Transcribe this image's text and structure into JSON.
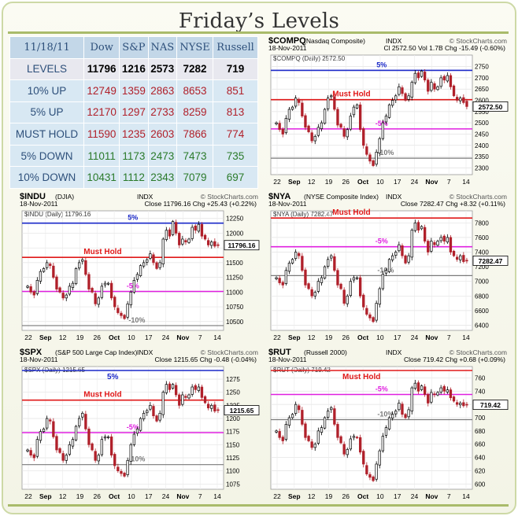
{
  "title": "Friday’s Levels",
  "colors": {
    "up": "#b0202a",
    "down": "#2a7a2a",
    "resist": "#e01818",
    "pct": "#e020e0",
    "top": "#1a28c8",
    "low": "#7a7a7a"
  },
  "levels_table": {
    "date": "11/18/11",
    "columns": [
      "Dow",
      "S&P",
      "NAS",
      "NYSE",
      "Russell"
    ],
    "rows": [
      {
        "label": "LEVELS",
        "values": [
          "11796",
          "1216",
          "2573",
          "7282",
          "719"
        ]
      },
      {
        "label": "10% UP",
        "values": [
          "12749",
          "1359",
          "2863",
          "8653",
          "851"
        ]
      },
      {
        "label": "5% UP",
        "values": [
          "12170",
          "1297",
          "2733",
          "8259",
          "813"
        ]
      },
      {
        "label": "MUST HOLD",
        "values": [
          "11590",
          "1235",
          "2603",
          "7866",
          "774"
        ]
      },
      {
        "label": "5% DOWN",
        "values": [
          "11011",
          "1173",
          "2473",
          "7473",
          "735"
        ]
      },
      {
        "label": "10% DOWN",
        "values": [
          "10431",
          "1112",
          "2343",
          "7079",
          "697"
        ]
      }
    ]
  },
  "chart_data": [
    {
      "type": "candlestick",
      "symbol": "$COMPQ",
      "name": "(Nasdaq Composite)",
      "exchange": "INDX",
      "source": "© StockCharts.com",
      "date": "18-Nov-2011",
      "stats": "Cl 2572.50  Vol 1.7B  Chg -15.49 (-0.60%)",
      "legend": "$COMPQ (Daily) 2572.50",
      "ylim": [
        2270,
        2780
      ],
      "yticks": [
        "2750",
        "2700",
        "2650",
        "2600",
        "2550",
        "2500",
        "2450",
        "2400",
        "2350",
        "2300"
      ],
      "ytick_values": [
        2750,
        2700,
        2650,
        2600,
        2550,
        2500,
        2450,
        2400,
        2350,
        2300
      ],
      "xticks": [
        "22",
        "Sep",
        "12",
        "19",
        "26",
        "Oct",
        "10",
        "17",
        "24",
        "Nov",
        "7",
        "14"
      ],
      "last_label": "2572.50",
      "last": 2572.5,
      "lines": [
        {
          "name": "5%",
          "value": 2733,
          "role": "top"
        },
        {
          "name": "Must Hold",
          "value": 2603,
          "role": "resist"
        },
        {
          "name": "-5%",
          "value": 2473,
          "role": "pct"
        },
        {
          "name": "-10%",
          "value": 2343,
          "role": "low"
        }
      ],
      "series": [
        2500,
        2470,
        2450,
        2520,
        2560,
        2570,
        2610,
        2590,
        2530,
        2480,
        2460,
        2420,
        2440,
        2480,
        2500,
        2560,
        2610,
        2620,
        2560,
        2490,
        2480,
        2440,
        2470,
        2530,
        2570,
        2580,
        2470,
        2400,
        2360,
        2330,
        2310,
        2370,
        2430,
        2500,
        2530,
        2580,
        2600,
        2620,
        2660,
        2630,
        2600,
        2620,
        2680,
        2720,
        2700,
        2730,
        2690,
        2640,
        2680,
        2650,
        2660,
        2700,
        2690,
        2710,
        2660,
        2620,
        2600,
        2610,
        2590,
        2572.5
      ]
    },
    {
      "type": "candlestick",
      "symbol": "$INDU",
      "name": "(DJIA)",
      "exchange": "INDX",
      "source": "© StockCharts.com",
      "date": "18-Nov-2011",
      "stats": "Close 11796.16  Chg +25.43 (+0.22%)",
      "legend": "$INDU (Daily) 11796.16",
      "ylim": [
        10350,
        12300
      ],
      "yticks": [
        "12250",
        "12000",
        "11750",
        "11500",
        "11250",
        "11000",
        "10750",
        "10500"
      ],
      "ytick_values": [
        12250,
        12000,
        11750,
        11500,
        11250,
        11000,
        10750,
        10500
      ],
      "xticks": [
        "22",
        "Sep",
        "12",
        "19",
        "26",
        "Oct",
        "10",
        "17",
        "24",
        "Nov",
        "7",
        "14"
      ],
      "last_label": "11796.16",
      "last": 11796.16,
      "lines": [
        {
          "name": "5%",
          "value": 12170,
          "role": "top"
        },
        {
          "name": "Must Hold",
          "value": 11590,
          "role": "resist"
        },
        {
          "name": "-5%",
          "value": 11011,
          "role": "pct"
        },
        {
          "name": "-10%",
          "value": 10431,
          "role": "low"
        }
      ],
      "series": [
        11100,
        11000,
        10950,
        11200,
        11350,
        11400,
        11500,
        11450,
        11250,
        11050,
        11000,
        10900,
        10950,
        11100,
        11150,
        11400,
        11500,
        11550,
        11300,
        11050,
        11000,
        10800,
        10900,
        11100,
        11150,
        11150,
        10900,
        10750,
        10650,
        10600,
        10550,
        10800,
        11000,
        11200,
        11300,
        11450,
        11500,
        11550,
        11650,
        11500,
        11400,
        11500,
        11900,
        12050,
        11950,
        12200,
        12000,
        11800,
        11900,
        11850,
        11900,
        12100,
        12050,
        12150,
        11950,
        11900,
        11800,
        11850,
        11780,
        11796.16
      ]
    },
    {
      "type": "candlestick",
      "symbol": "$NYA",
      "name": "(NYSE Composite Index)",
      "exchange": "INDX",
      "source": "© StockCharts.com",
      "date": "18-Nov-2011",
      "stats": "Close 7282.47  Chg +8.32 (+0.11%)",
      "legend": "$NYA (Daily) 7282.47",
      "ylim": [
        6330,
        7900
      ],
      "yticks": [
        "7800",
        "7600",
        "7400",
        "7200",
        "7000",
        "6800",
        "6600",
        "6400"
      ],
      "ytick_values": [
        7800,
        7600,
        7400,
        7200,
        7000,
        6800,
        6600,
        6400
      ],
      "xticks": [
        "22",
        "Sep",
        "12",
        "19",
        "26",
        "Oct",
        "10",
        "17",
        "24",
        "Nov",
        "7",
        "14"
      ],
      "last_label": "7282.47",
      "last": 7282.47,
      "lines": [
        {
          "name": "Must Hold",
          "value": 7866,
          "role": "resist"
        },
        {
          "name": "-5%",
          "value": 7473,
          "role": "pct"
        },
        {
          "name": "-10%",
          "value": 7079,
          "role": "low"
        }
      ],
      "series": [
        7050,
        6980,
        6950,
        7150,
        7250,
        7300,
        7400,
        7350,
        7150,
        6950,
        6900,
        6800,
        6850,
        7000,
        7050,
        7200,
        7300,
        7350,
        7150,
        6950,
        6900,
        6700,
        6800,
        7000,
        7050,
        7050,
        6800,
        6650,
        6550,
        6500,
        6450,
        6700,
        6900,
        7100,
        7150,
        7300,
        7350,
        7400,
        7500,
        7350,
        7250,
        7350,
        7700,
        7800,
        7700,
        7750,
        7550,
        7400,
        7550,
        7500,
        7550,
        7600,
        7550,
        7600,
        7400,
        7350,
        7300,
        7350,
        7270,
        7282.47
      ]
    },
    {
      "type": "candlestick",
      "symbol": "$SPX",
      "name": "(S&P 500 Large Cap Index)",
      "exchange": "INDX",
      "source": "© StockCharts.com",
      "date": "18-Nov-2011",
      "stats": "Close 1215.65  Chg -0.48 (-0.04%)",
      "legend": "$SPX (Daily) 1215.65",
      "ylim": [
        1065,
        1290
      ],
      "yticks": [
        "1275",
        "1250",
        "1225",
        "1200",
        "1175",
        "1150",
        "1125",
        "1100",
        "1075"
      ],
      "ytick_values": [
        1275,
        1250,
        1225,
        1200,
        1175,
        1150,
        1125,
        1100,
        1075
      ],
      "xticks": [
        "22",
        "Sep",
        "12",
        "19",
        "26",
        "Oct",
        "10",
        "17",
        "24",
        "Nov",
        "7",
        "14"
      ],
      "last_label": "1215.65",
      "last": 1215.65,
      "lines": [
        {
          "name": "5%",
          "value": 1297,
          "role": "top"
        },
        {
          "name": "Must Hold",
          "value": 1235,
          "role": "resist"
        },
        {
          "name": "-5%",
          "value": 1173,
          "role": "pct"
        },
        {
          "name": "-10%",
          "value": 1112,
          "role": "low"
        }
      ],
      "series": [
        1140,
        1130,
        1125,
        1160,
        1175,
        1180,
        1200,
        1195,
        1165,
        1140,
        1135,
        1120,
        1130,
        1150,
        1160,
        1185,
        1200,
        1210,
        1180,
        1150,
        1140,
        1120,
        1130,
        1160,
        1165,
        1165,
        1130,
        1110,
        1100,
        1095,
        1090,
        1120,
        1150,
        1170,
        1180,
        1200,
        1210,
        1215,
        1225,
        1205,
        1195,
        1210,
        1250,
        1265,
        1255,
        1265,
        1245,
        1225,
        1245,
        1240,
        1245,
        1260,
        1255,
        1260,
        1240,
        1230,
        1220,
        1225,
        1214,
        1215.65
      ]
    },
    {
      "type": "candlestick",
      "symbol": "$RUT",
      "name": "(Russell 2000)",
      "exchange": "INDX",
      "source": "© StockCharts.com",
      "date": "18-Nov-2011",
      "stats": "Close 719.42  Chg +0.68 (+0.09%)",
      "legend": "$RUT (Daily) 719.42",
      "ylim": [
        592,
        770
      ],
      "yticks": [
        "760",
        "740",
        "720",
        "700",
        "680",
        "660",
        "640",
        "620",
        "600"
      ],
      "ytick_values": [
        760,
        740,
        720,
        700,
        680,
        660,
        640,
        620,
        600
      ],
      "xticks": [
        "22",
        "Sep",
        "12",
        "19",
        "26",
        "Oct",
        "10",
        "17",
        "24",
        "Nov",
        "7",
        "14"
      ],
      "last_label": "719.42",
      "last": 719.42,
      "lines": [
        {
          "name": "Must Hold",
          "value": 774,
          "role": "resist"
        },
        {
          "name": "-5%",
          "value": 735,
          "role": "pct"
        },
        {
          "name": "-10%",
          "value": 697,
          "role": "low"
        }
      ],
      "series": [
        680,
        670,
        665,
        690,
        700,
        705,
        720,
        712,
        690,
        670,
        665,
        655,
        660,
        680,
        685,
        700,
        710,
        715,
        690,
        670,
        662,
        645,
        652,
        668,
        672,
        670,
        648,
        630,
        615,
        610,
        605,
        630,
        650,
        672,
        685,
        700,
        705,
        710,
        722,
        705,
        700,
        712,
        745,
        752,
        740,
        748,
        735,
        722,
        738,
        735,
        738,
        745,
        740,
        742,
        730,
        725,
        720,
        722,
        718,
        719.42
      ]
    }
  ]
}
